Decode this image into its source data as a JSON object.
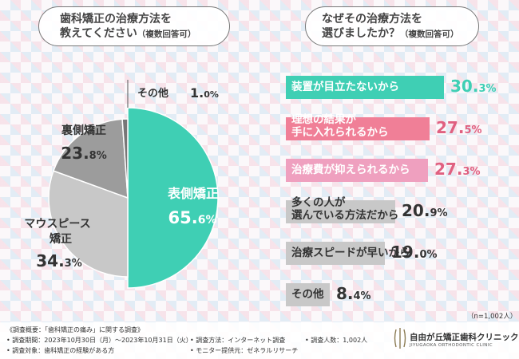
{
  "q1": {
    "line1": "歯科矯正の治療方法を",
    "line2": "教えてください",
    "sub": "（複数回答可）"
  },
  "q2": {
    "line1": "なぜその治療方法を",
    "line2": "選びましたか？",
    "sub": "（複数回答可）"
  },
  "colors": {
    "teal": "#3fcfb4",
    "gray_light": "#c8c8c8",
    "gray_dark": "#9c9c9c",
    "pink": "#f07f97",
    "pink_light": "#efa0bf",
    "text_teal": "#3fcfb4",
    "text_pink": "#e06080"
  },
  "chart_data": [
    {
      "type": "pie",
      "title": "歯科矯正の治療方法を教えてください（複数回答可）",
      "slices": [
        {
          "label": "表側矯正",
          "value": 65.6
        },
        {
          "label": "マウスピース矯正",
          "value": 34.3
        },
        {
          "label": "裏側矯正",
          "value": 23.8
        },
        {
          "label": "その他",
          "value": 1.0
        }
      ],
      "labels": {
        "front": {
          "text": "表側矯正",
          "int": "65.",
          "dec": "6%"
        },
        "mouthpiece": {
          "line1": "マウスピース",
          "line2": "矯正",
          "int": "34.",
          "dec": "3%"
        },
        "back": {
          "text": "裏側矯正",
          "int": "23.",
          "dec": "8%"
        },
        "other": {
          "text": "その他",
          "int": "1.",
          "dec": "0%"
        }
      }
    },
    {
      "type": "bar",
      "title": "なぜその治療方法を選びましたか？（複数回答可）",
      "max": 30.3,
      "bars": [
        {
          "line1": "装置が目立たないから",
          "line2": "",
          "value": 30.3,
          "int": "30.",
          "dec": "3%",
          "fill": "#3fcfb4",
          "label_color": "#ffffff",
          "value_color": "#3fcfb4"
        },
        {
          "line1": "理想の結果が",
          "line2": "手に入れられるから",
          "value": 27.5,
          "int": "27.",
          "dec": "5%",
          "fill": "#f07f97",
          "label_color": "#ffffff",
          "value_color": "#e06080"
        },
        {
          "line1": "治療費が抑えられるから",
          "line2": "",
          "value": 27.3,
          "int": "27.",
          "dec": "3%",
          "fill": "#efa0bf",
          "label_color": "#ffffff",
          "value_color": "#e06080"
        },
        {
          "line1": "多くの人が",
          "line2": "選んでいる方法だから",
          "value": 20.9,
          "int": "20.",
          "dec": "9%",
          "fill": "#c8c8c8",
          "label_color": "#333333",
          "value_color": "#333333"
        },
        {
          "line1": "治療スピードが早いから",
          "line2": "",
          "value": 19.0,
          "int": "19.",
          "dec": "0%",
          "fill": "#c8c8c8",
          "label_color": "#333333",
          "value_color": "#333333"
        },
        {
          "line1": "その他",
          "line2": "",
          "value": 8.4,
          "int": "8.",
          "dec": "4%",
          "fill": "#c8c8c8",
          "label_color": "#333333",
          "value_color": "#333333"
        }
      ]
    }
  ],
  "n_note": "（n=1,002人）",
  "footer": {
    "l1": "《調査概要：「歯科矯正の痛み」に関する調査》",
    "l2": "• 調査期間：2023年10月30日（月）〜2023年10月31日（火）",
    "l3": "• 調査対象：歯科矯正の経験がある方",
    "m1": "• 調査方法：インターネット調査",
    "m2": "• モニター提供元：ゼネラルリサーチ",
    "r1": "• 調査人数：1,002人"
  },
  "logo": {
    "name": "自由が丘矯正歯科クリニック",
    "sub": "JIYUGAOKA ORTHODONTIC CLINIC"
  }
}
